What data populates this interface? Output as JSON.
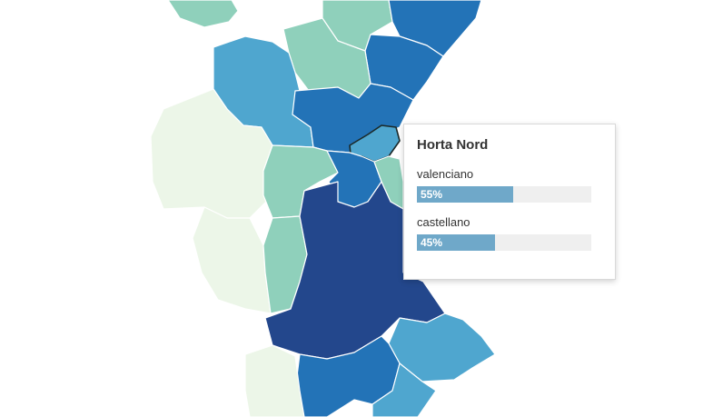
{
  "tooltip": {
    "title": "Horta Nord",
    "rows": [
      {
        "label": "valenciano",
        "value": 55,
        "value_text": "55%"
      },
      {
        "label": "castellano",
        "value": 45,
        "value_text": "45%"
      }
    ]
  },
  "colors": {
    "level_1": "#ecf6e8",
    "level_2": "#8fd0bb",
    "level_3": "#4fa6cf",
    "level_4": "#2373b7",
    "level_5": "#23478c",
    "bar_fill": "#6fa8c9",
    "bar_track": "#efefef"
  }
}
